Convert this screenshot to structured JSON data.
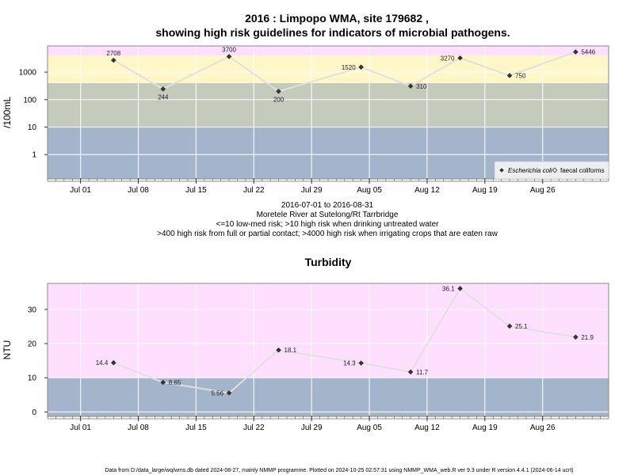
{
  "title_lines": [
    "2016 : Limpopo WMA, site 179682 ,",
    "showing high risk guidelines for indicators of microbial pathogens."
  ],
  "caption_lines": [
    "2016-07-01 to 2016-08-31",
    "Moretele River at Sutelong/Rt Tarrbridge",
    "<=10 low-med risk; >10 high risk when drinking untreated water",
    ">400 high risk from full or partial contact; >4000 high risk when irrigating crops that are eaten raw"
  ],
  "footer": "Data from D:/data_large/wq/wms.db dated 2024-08-27, mainly NMMP programme. Plotted on 2024-10-25 02:57:31 using NMMP_WMA_web.R ver 9.3 under R version 4.4.1 (2024-06-14 ucrt)",
  "colors": {
    "band_low": "#a3b4cb",
    "band_mid": "#c4cbbd",
    "band_high": "#fff7c8",
    "band_top": "#fee0fe",
    "line": "#e0e0e0",
    "point": "#333333",
    "frame": "#888888"
  },
  "chart_data": [
    {
      "type": "line",
      "title": "",
      "xlabel": "",
      "ylabel": "/100mL",
      "yscale": "log",
      "x_range": [
        "2016-06-27",
        "2016-09-03"
      ],
      "x_ticks": [
        {
          "date": "2016-07-01",
          "label": "Jul 01"
        },
        {
          "date": "2016-07-08",
          "label": "Jul 08"
        },
        {
          "date": "2016-07-15",
          "label": "Jul 15"
        },
        {
          "date": "2016-07-22",
          "label": "Jul 22"
        },
        {
          "date": "2016-07-29",
          "label": "Jul 29"
        },
        {
          "date": "2016-08-05",
          "label": "Aug 05"
        },
        {
          "date": "2016-08-12",
          "label": "Aug 12"
        },
        {
          "date": "2016-08-19",
          "label": "Aug 19"
        },
        {
          "date": "2016-08-26",
          "label": "Aug 26"
        }
      ],
      "y_ticks": [
        {
          "value": 1,
          "label": "1"
        },
        {
          "value": 10,
          "label": "10"
        },
        {
          "value": 100,
          "label": "100"
        },
        {
          "value": 1000,
          "label": "1000"
        }
      ],
      "ylim": [
        0.13,
        9000
      ],
      "bands": [
        {
          "from": 0.13,
          "to": 10,
          "color": "band_low"
        },
        {
          "from": 10,
          "to": 400,
          "color": "band_mid"
        },
        {
          "from": 400,
          "to": 4000,
          "color": "band_high"
        },
        {
          "from": 4000,
          "to": 9000,
          "color": "band_top"
        }
      ],
      "legend": {
        "position": "bottom-right",
        "entries": [
          "Escherichia coli",
          "faecal coliforms"
        ]
      },
      "series": [
        {
          "name": "Escherichia coli",
          "marker": "filled-diamond",
          "points": [
            {
              "x": "2016-07-05",
              "y": 2708,
              "label": "2708",
              "pos": "above"
            },
            {
              "x": "2016-07-11",
              "y": 244,
              "label": "244",
              "pos": "below"
            },
            {
              "x": "2016-07-19",
              "y": 3700,
              "label": "3700",
              "pos": "above"
            },
            {
              "x": "2016-07-25",
              "y": 200,
              "label": "200",
              "pos": "below"
            },
            {
              "x": "2016-08-04",
              "y": 1520,
              "label": "1520",
              "pos": "left"
            },
            {
              "x": "2016-08-10",
              "y": 310,
              "label": "310",
              "pos": "right"
            },
            {
              "x": "2016-08-16",
              "y": 3270,
              "label": "3270",
              "pos": "left"
            },
            {
              "x": "2016-08-22",
              "y": 750,
              "label": "750",
              "pos": "right"
            },
            {
              "x": "2016-08-30",
              "y": 5446,
              "label": "5446",
              "pos": "right"
            }
          ]
        }
      ]
    },
    {
      "type": "line",
      "title": "Turbidity",
      "xlabel": "",
      "ylabel": "NTU",
      "x_range": [
        "2016-06-27",
        "2016-09-03"
      ],
      "x_ticks": [
        {
          "date": "2016-07-01",
          "label": "Jul 01"
        },
        {
          "date": "2016-07-08",
          "label": "Jul 08"
        },
        {
          "date": "2016-07-15",
          "label": "Jul 15"
        },
        {
          "date": "2016-07-22",
          "label": "Jul 22"
        },
        {
          "date": "2016-07-29",
          "label": "Jul 29"
        },
        {
          "date": "2016-08-05",
          "label": "Aug 05"
        },
        {
          "date": "2016-08-12",
          "label": "Aug 12"
        },
        {
          "date": "2016-08-19",
          "label": "Aug 19"
        },
        {
          "date": "2016-08-26",
          "label": "Aug 26"
        }
      ],
      "y_ticks": [
        {
          "value": 0,
          "label": "0"
        },
        {
          "value": 10,
          "label": "10"
        },
        {
          "value": 20,
          "label": "20"
        },
        {
          "value": 30,
          "label": "30"
        }
      ],
      "ylim": [
        -1.3,
        37.6
      ],
      "bands": [
        {
          "from": -1.3,
          "to": 10,
          "color": "band_low"
        },
        {
          "from": 10,
          "to": 37.6,
          "color": "band_top"
        }
      ],
      "series": [
        {
          "name": "",
          "marker": "filled-diamond",
          "points": [
            {
              "x": "2016-07-05",
              "y": 14.4,
              "label": "14.4",
              "pos": "left"
            },
            {
              "x": "2016-07-11",
              "y": 8.65,
              "label": "8.65",
              "pos": "right"
            },
            {
              "x": "2016-07-19",
              "y": 5.56,
              "label": "5.56",
              "pos": "left"
            },
            {
              "x": "2016-07-25",
              "y": 18.1,
              "label": "18.1",
              "pos": "right"
            },
            {
              "x": "2016-08-04",
              "y": 14.3,
              "label": "14.3",
              "pos": "left"
            },
            {
              "x": "2016-08-10",
              "y": 11.7,
              "label": "11.7",
              "pos": "right"
            },
            {
              "x": "2016-08-16",
              "y": 36.1,
              "label": "36.1",
              "pos": "left"
            },
            {
              "x": "2016-08-22",
              "y": 25.1,
              "label": "25.1",
              "pos": "right"
            },
            {
              "x": "2016-08-30",
              "y": 21.9,
              "label": "21.9",
              "pos": "right"
            }
          ]
        }
      ]
    }
  ]
}
